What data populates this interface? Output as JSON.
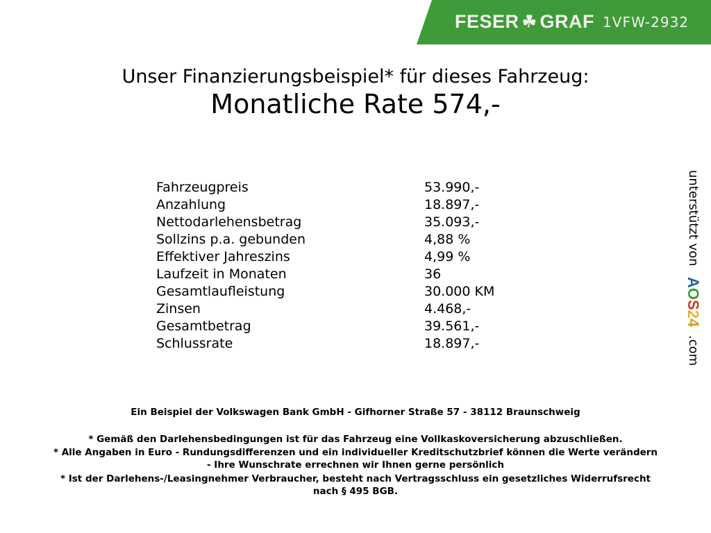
{
  "header": {
    "brand_left": "FESER",
    "brand_right": "GRAF",
    "logo_icon": "clover-icon",
    "vehicle_code": "1VFW-2932",
    "brand_color": "#3f9b3a"
  },
  "title": "Unser Finanzierungsbeispiel* für dieses Fahrzeug:",
  "subtitle": "Monatliche Rate 574,-",
  "rows": [
    {
      "label": "Fahrzeugpreis",
      "value": "53.990,-"
    },
    {
      "label": "Anzahlung",
      "value": "18.897,-"
    },
    {
      "label": "Nettodarlehensbetrag",
      "value": "35.093,-"
    },
    {
      "label": "Sollzins p.a. gebunden",
      "value": "4,88 %"
    },
    {
      "label": "Effektiver Jahreszins",
      "value": "4,99 %"
    },
    {
      "label": "Laufzeit in Monaten",
      "value": "36"
    },
    {
      "label": "Gesamtlaufleistung",
      "value": "30.000 KM"
    },
    {
      "label": "Zinsen",
      "value": "4.468,-"
    },
    {
      "label": "Gesamtbetrag",
      "value": "39.561,-"
    },
    {
      "label": "Schlussrate",
      "value": "18.897,-"
    }
  ],
  "footer": {
    "bank": "Ein Beispiel der Volkswagen Bank GmbH - Gifhorner Straße 57 - 38112 Braunschweig",
    "note1": "* Gemäß den Darlehensbedingungen ist für das Fahrzeug eine Vollkaskoversicherung abzuschließen.",
    "note2a": "* Alle Angaben in Euro - Rundungsdifferenzen und ein individueller Kreditschutzbrief können die Werte verändern",
    "note2b": "- Ihre Wunschrate errechnen wir Ihnen gerne persönlich",
    "note3a": "* Ist der Darlehens-/Leasingnehmer Verbraucher, besteht nach Vertragsschluss ein gesetzliches Widerrufsrecht",
    "note3b": "nach § 495 BGB."
  },
  "side": {
    "prefix": "unterstützt von",
    "logo": [
      "A",
      "O",
      "S",
      "2",
      "4"
    ],
    "logo_colors": [
      "#2b5ea8",
      "#3f9b3a",
      "#d23a2a",
      "#e6b422",
      "#c9a61c"
    ],
    "suffix": ".com"
  }
}
